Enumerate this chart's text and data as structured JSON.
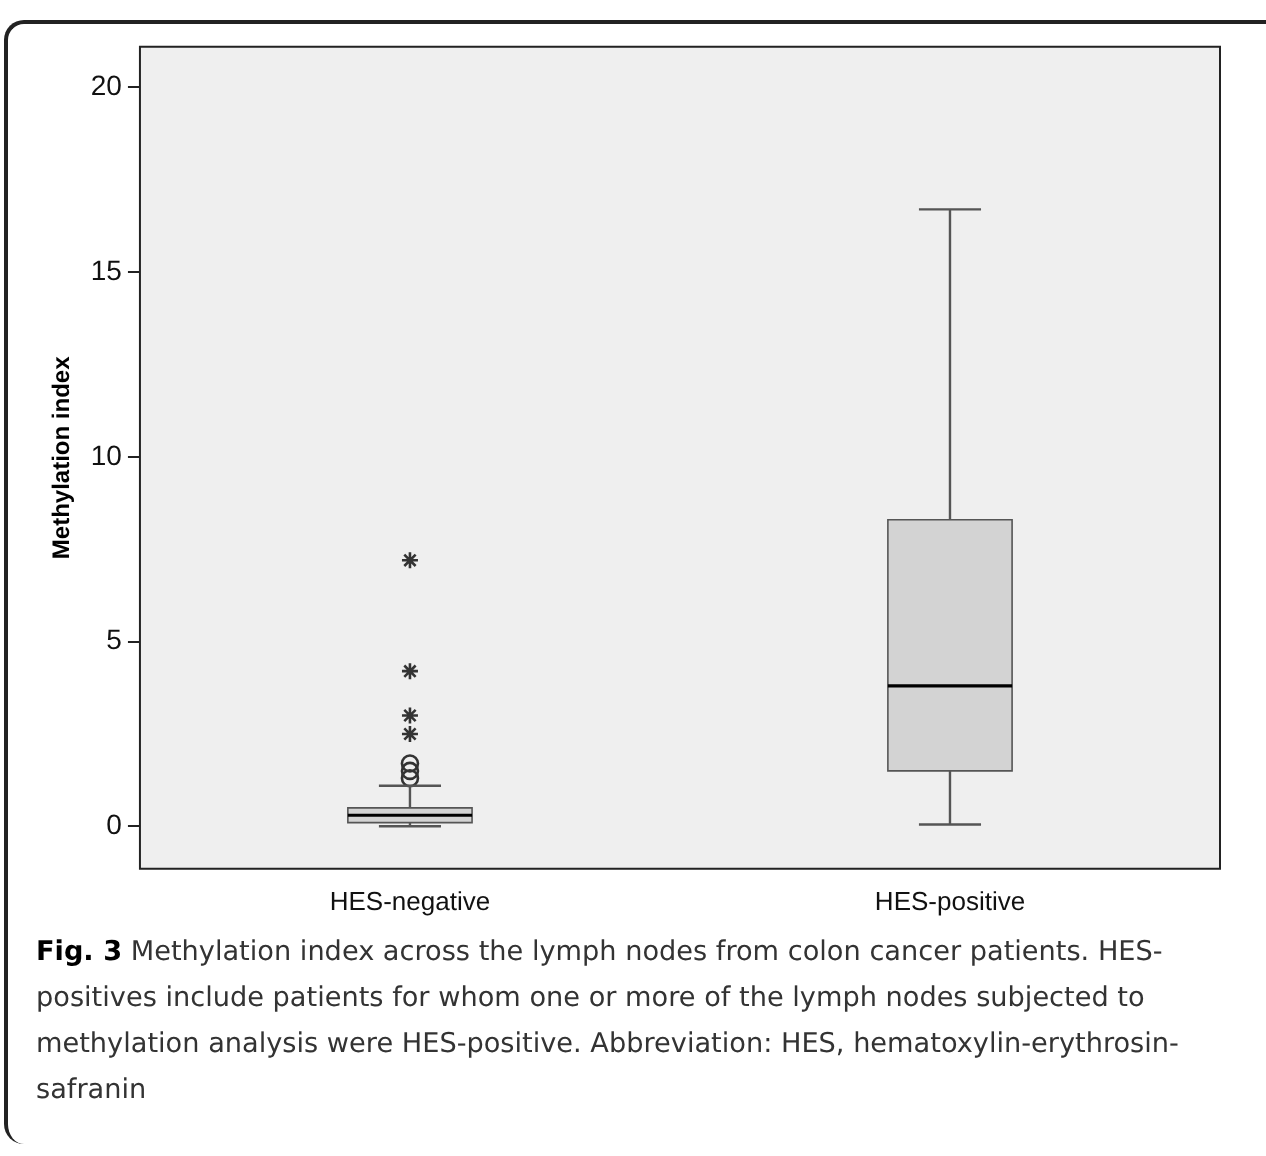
{
  "chart_data": {
    "type": "box",
    "ylabel": "Methylation index",
    "categories": [
      "HES-negative",
      "HES-positive"
    ],
    "boxes": [
      {
        "low": 0,
        "q1": 0.1,
        "median": 0.3,
        "q3": 0.5,
        "high": 1.1,
        "outliers": [
          1.3,
          1.5,
          1.7,
          2.5,
          3.0,
          4.2,
          7.2
        ]
      },
      {
        "low": 0.05,
        "q1": 1.5,
        "median": 3.8,
        "q3": 8.3,
        "high": 16.7
      }
    ],
    "color": "#d3d3d3",
    "ylim": [
      -1.15,
      21.1
    ],
    "yticks": [
      0,
      5,
      10,
      15,
      20
    ],
    "grid": false,
    "legend": false,
    "annotations": [
      "Fig. 3 Methylation index across the lymph nodes from colon cancer patients. HES-positives include patients for whom one or more of the lymph nodes subjected to methylation analysis were HES-positive. Abbreviation: HES, hematoxylin-erythrosin-safranin"
    ]
  }
}
